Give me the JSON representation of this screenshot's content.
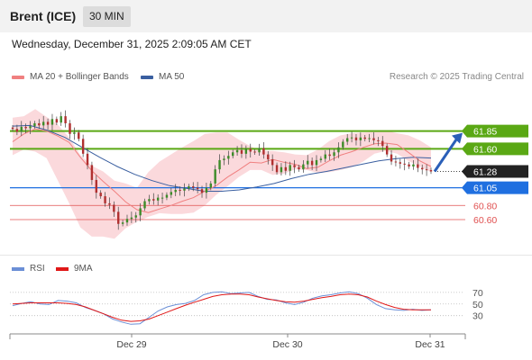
{
  "header": {
    "title": "Brent (ICE)",
    "timeframe": "30 MIN",
    "datetime": "Wednesday, December 31, 2025 2:09:05 AM CET"
  },
  "legend": {
    "ma20": "MA 20 + Bollinger Bands",
    "ma50": "MA 50",
    "credit": "Research © 2025 Trading Central",
    "rsi": "RSI",
    "rsi_ma": "9MA"
  },
  "colors": {
    "ma20": "#f08080",
    "ma50": "#3a5fa0",
    "band_fill": "#fbd9dc",
    "candle_up": "#3c8c28",
    "candle_down": "#b03030",
    "resistance": "#5aa814",
    "support_blue": "#1f6fe0",
    "support_red": "#e05050",
    "last_price": "#222222",
    "rsi_line": "#6b8fd6",
    "rsi_ma_line": "#e01818",
    "arrow": "#2a5fb8"
  },
  "chart_data": [
    {
      "type": "candlestick",
      "title": "",
      "x_labels": [
        "Dec 29",
        "Dec 30",
        "Dec 31"
      ],
      "price_levels": [
        {
          "value": 61.85,
          "label": "61.85",
          "kind": "resistance"
        },
        {
          "value": 61.6,
          "label": "61.60",
          "kind": "resistance"
        },
        {
          "value": 61.28,
          "label": "61.28",
          "kind": "last"
        },
        {
          "value": 61.05,
          "label": "61.05",
          "kind": "support-blue"
        },
        {
          "value": 60.8,
          "label": "60.80",
          "kind": "support-red"
        },
        {
          "value": 60.6,
          "label": "60.60",
          "kind": "support-red"
        }
      ],
      "ylim": [
        60.27,
        62.43
      ],
      "close": [
        61.88,
        61.84,
        61.91,
        61.89,
        61.92,
        61.96,
        61.93,
        61.98,
        61.94,
        62.02,
        61.97,
        62.06,
        61.96,
        61.81,
        61.83,
        61.74,
        61.53,
        61.37,
        61.16,
        60.98,
        60.93,
        60.83,
        60.81,
        60.71,
        60.54,
        60.56,
        60.61,
        60.63,
        60.66,
        60.76,
        60.86,
        60.89,
        60.87,
        60.91,
        60.91,
        60.95,
        60.99,
        61.02,
        61.01,
        61.04,
        61.07,
        61.05,
        61.03,
        60.98,
        61.05,
        61.11,
        61.31,
        61.44,
        61.46,
        61.5,
        61.55,
        61.58,
        61.53,
        61.6,
        61.56,
        61.55,
        61.61,
        61.52,
        61.45,
        61.37,
        61.27,
        61.34,
        61.29,
        61.37,
        61.34,
        61.31,
        61.38,
        61.43,
        61.37,
        61.44,
        61.46,
        61.52,
        61.5,
        61.55,
        61.62,
        61.7,
        61.75,
        61.76,
        61.72,
        61.76,
        61.74,
        61.75,
        61.72,
        61.71,
        61.64,
        61.52,
        61.42,
        61.41,
        61.39,
        61.38,
        61.35,
        61.38,
        61.33,
        61.31,
        61.3,
        61.28
      ],
      "ma20": [
        61.7,
        61.81,
        61.88,
        61.85,
        61.78,
        61.69,
        61.48,
        61.29,
        61.14,
        61.0,
        60.85,
        60.74,
        60.7,
        60.75,
        60.8,
        60.86,
        60.91,
        61.0,
        61.08,
        61.2,
        61.3,
        61.41,
        61.4,
        61.45,
        61.41,
        61.38,
        61.32,
        61.34,
        61.43,
        61.51,
        61.56,
        61.62,
        61.67,
        61.68,
        61.66,
        61.55,
        61.43,
        61.35
      ],
      "bb_upper": [
        62.04,
        62.06,
        62.16,
        62.05,
        61.94,
        61.76,
        61.51,
        61.36,
        61.28,
        61.15,
        61.11,
        61.05,
        61.27,
        61.42,
        61.52,
        61.62,
        61.71,
        61.81,
        61.83,
        61.83,
        61.73,
        61.64,
        61.57,
        61.57,
        61.55,
        61.52,
        61.51,
        61.59,
        61.71,
        61.79,
        61.82,
        61.83,
        61.84,
        61.86,
        61.82,
        61.79,
        61.72,
        61.62
      ],
      "bb_lower": [
        61.51,
        61.59,
        61.56,
        61.47,
        61.15,
        60.83,
        60.49,
        60.36,
        60.36,
        60.33,
        60.48,
        60.57,
        60.64,
        60.69,
        60.68,
        60.68,
        60.7,
        60.8,
        60.95,
        61.07,
        61.2,
        61.3,
        61.3,
        61.23,
        61.25,
        61.31,
        61.3,
        61.26,
        61.27,
        61.3,
        61.34,
        61.42,
        61.53,
        61.57,
        61.53,
        61.43,
        61.35,
        61.27
      ],
      "ma50": [
        61.92,
        61.93,
        61.86,
        61.76,
        61.62,
        61.48,
        61.35,
        61.24,
        61.15,
        61.08,
        61.04,
        61.0,
        61.0,
        61.02,
        61.06,
        61.11,
        61.18,
        61.24,
        61.28,
        61.33,
        61.38,
        61.43,
        61.46,
        61.48,
        61.47
      ]
    },
    {
      "type": "line",
      "title": "",
      "series_labels": [
        "RSI",
        "9MA"
      ],
      "levels": [
        70,
        50,
        30
      ],
      "ylim": [
        0,
        90
      ],
      "rsi": [
        47,
        51,
        54,
        50,
        49,
        56,
        55,
        52,
        44,
        39,
        33,
        24,
        19,
        15,
        16,
        27,
        38,
        45,
        49,
        51,
        56,
        66,
        70,
        71,
        68,
        69,
        70,
        63,
        58,
        57,
        52,
        49,
        53,
        60,
        64,
        66,
        69,
        71,
        68,
        60,
        49,
        42,
        40,
        39,
        41,
        39,
        40
      ],
      "rsi_ma": [
        50,
        51,
        52,
        52,
        52,
        52,
        51,
        49,
        45,
        39,
        33,
        27,
        22,
        20,
        21,
        24,
        30,
        36,
        42,
        48,
        53,
        58,
        63,
        66,
        67,
        67,
        66,
        62,
        59,
        56,
        54,
        53,
        55,
        58,
        61,
        63,
        66,
        67,
        66,
        62,
        55,
        49,
        44,
        41,
        40,
        40,
        40
      ]
    }
  ]
}
